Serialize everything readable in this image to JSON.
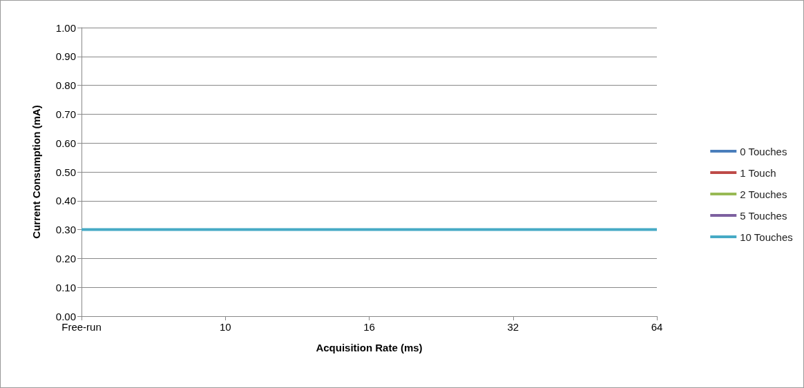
{
  "chart_data": {
    "type": "line",
    "xlabel": "Acquisition Rate (ms)",
    "ylabel": "Current Consumption (mA)",
    "categories": [
      "Free-run",
      "10",
      "16",
      "32",
      "64"
    ],
    "series": [
      {
        "name": "0 Touches",
        "color": "#4a7ebb",
        "values": [
          null,
          null,
          null,
          null,
          null
        ]
      },
      {
        "name": "1 Touch",
        "color": "#be4b48",
        "values": [
          null,
          null,
          null,
          null,
          null
        ]
      },
      {
        "name": "2 Touches",
        "color": "#98b954",
        "values": [
          null,
          null,
          null,
          null,
          null
        ]
      },
      {
        "name": "5 Touches",
        "color": "#7d60a0",
        "values": [
          null,
          null,
          null,
          null,
          null
        ]
      },
      {
        "name": "10 Touches",
        "color": "#46aac5",
        "values": [
          0.3,
          0.3,
          0.3,
          0.3,
          0.3
        ]
      }
    ],
    "ylim": [
      0,
      1
    ],
    "yticks": [
      {
        "value": 0,
        "label": "0.00"
      },
      {
        "value": 0.1,
        "label": "0.10"
      },
      {
        "value": 0.2,
        "label": "0.20"
      },
      {
        "value": 0.3,
        "label": "0.30"
      },
      {
        "value": 0.4,
        "label": "0.40"
      },
      {
        "value": 0.5,
        "label": "0.50"
      },
      {
        "value": 0.6,
        "label": "0.60"
      },
      {
        "value": 0.7,
        "label": "0.70"
      },
      {
        "value": 0.8,
        "label": "0.80"
      },
      {
        "value": 0.9,
        "label": "0.90"
      },
      {
        "value": 1,
        "label": "1.00"
      }
    ],
    "grid": "y",
    "legend": "right",
    "marker": "none",
    "line_style": "solid"
  }
}
